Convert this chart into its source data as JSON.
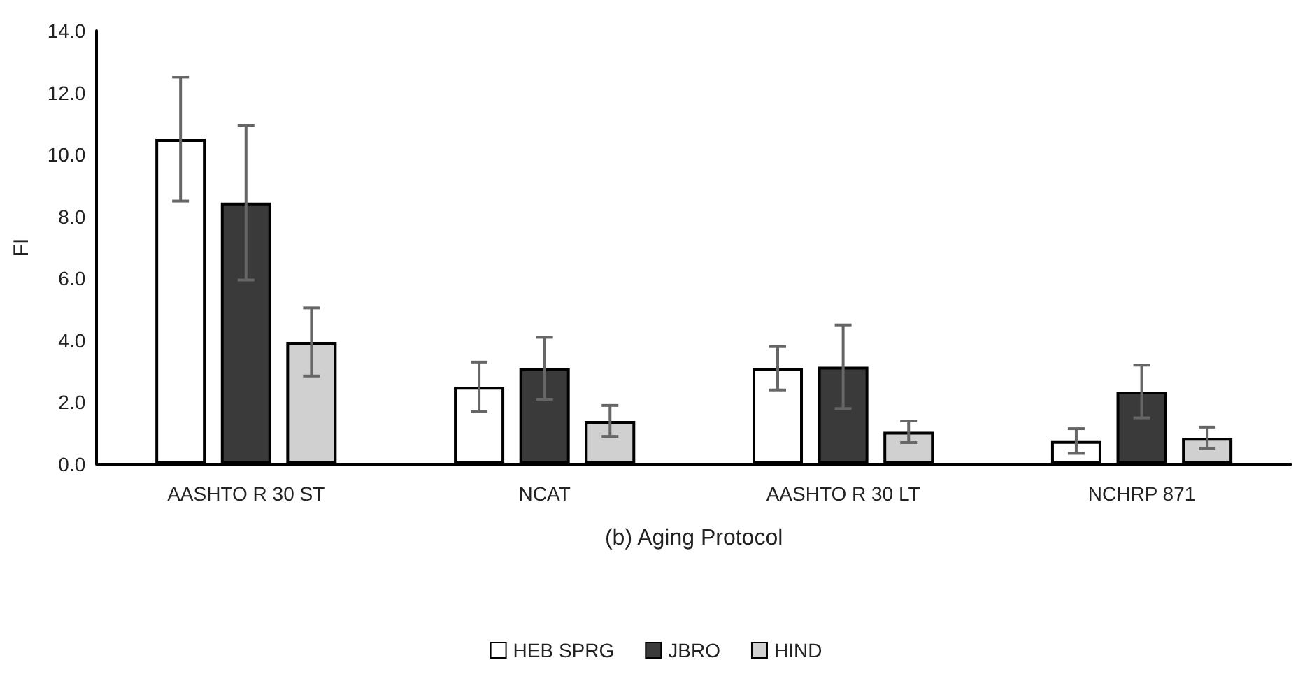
{
  "chart_data": {
    "type": "bar",
    "xlabel": "(b) Aging Protocol",
    "ylabel": "FI",
    "categories": [
      "AASHTO R 30 ST",
      "NCAT",
      "AASHTO R 30 LT",
      "NCHRP 871"
    ],
    "series": [
      {
        "name": "HEB SPRG",
        "color": "#ffffff",
        "values": [
          10.5,
          2.5,
          3.1,
          0.75
        ],
        "errors": [
          2.0,
          0.8,
          0.7,
          0.4
        ]
      },
      {
        "name": "JBRO",
        "color": "#3a3a3a",
        "values": [
          8.45,
          3.1,
          3.15,
          2.35
        ],
        "errors": [
          2.5,
          1.0,
          1.35,
          0.85
        ]
      },
      {
        "name": "HIND",
        "color": "#d0d0d0",
        "values": [
          3.95,
          1.4,
          1.05,
          0.85
        ],
        "errors": [
          1.1,
          0.5,
          0.35,
          0.35
        ]
      }
    ],
    "ylim": [
      0,
      14
    ],
    "yticks": [
      {
        "value": 0,
        "label": "0.0"
      },
      {
        "value": 2,
        "label": "2.0"
      },
      {
        "value": 4,
        "label": "4.0"
      },
      {
        "value": 6,
        "label": "6.0"
      },
      {
        "value": 8,
        "label": "8.0"
      },
      {
        "value": 10,
        "label": "10.0"
      },
      {
        "value": 12,
        "label": "12.0"
      },
      {
        "value": 14,
        "label": "14.0"
      }
    ],
    "grid": false,
    "legend": "bottom"
  }
}
